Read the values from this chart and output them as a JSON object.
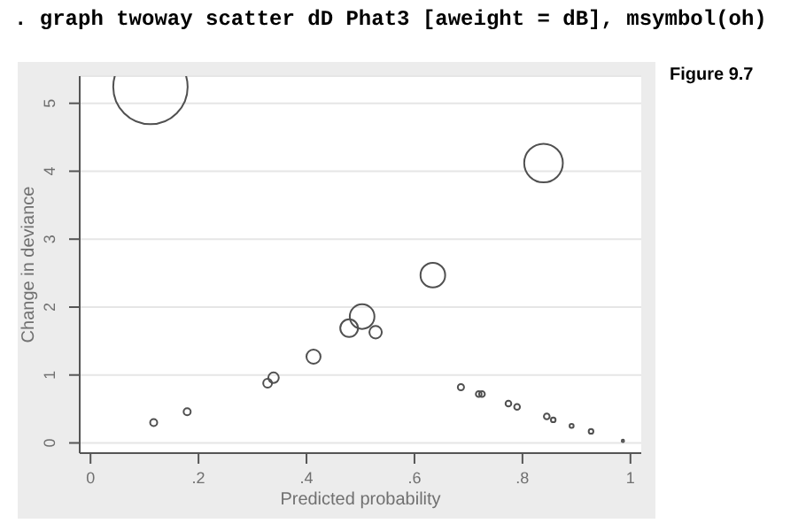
{
  "chart_data": {
    "type": "bubble",
    "title": ". graph twoway scatter dD Phat3 [aweight = dB], msymbol(oh)",
    "annotations": [
      "Figure 9.7"
    ],
    "xlabel": "Predicted probability",
    "ylabel": "Change in deviance",
    "x": [
      0.111,
      0.117,
      0.179,
      0.328,
      0.339,
      0.413,
      0.479,
      0.503,
      0.528,
      0.634,
      0.839,
      0.686,
      0.719,
      0.725,
      0.774,
      0.79,
      0.845,
      0.857,
      0.891,
      0.927,
      0.986
    ],
    "values": [
      5.24,
      0.3,
      0.46,
      0.88,
      0.96,
      1.27,
      1.69,
      1.86,
      1.63,
      2.47,
      4.12,
      0.82,
      0.72,
      0.72,
      0.58,
      0.53,
      0.39,
      0.34,
      0.25,
      0.17,
      0.03
    ],
    "sizes": [
      1,
      0.009,
      0.009,
      0.014,
      0.02,
      0.036,
      0.057,
      0.11,
      0.028,
      0.11,
      0.27,
      0.007,
      0.006,
      0.006,
      0.006,
      0.006,
      0.006,
      0.004,
      0.003,
      0.004,
      0.001
    ],
    "color": "#505050",
    "marker": "circle",
    "grid": "y",
    "xlim": [
      -0.02,
      1.02
    ],
    "xticks": [
      0,
      {
        "value": 0.2,
        "label": ".2"
      },
      {
        "value": 0.4,
        "label": ".4"
      },
      {
        "value": 0.6,
        "label": ".6"
      },
      {
        "value": 0.8,
        "label": ".8"
      },
      1
    ],
    "ylim": [
      -0.15,
      5.4
    ],
    "yticks": [
      0,
      1,
      2,
      3,
      4,
      5
    ]
  }
}
